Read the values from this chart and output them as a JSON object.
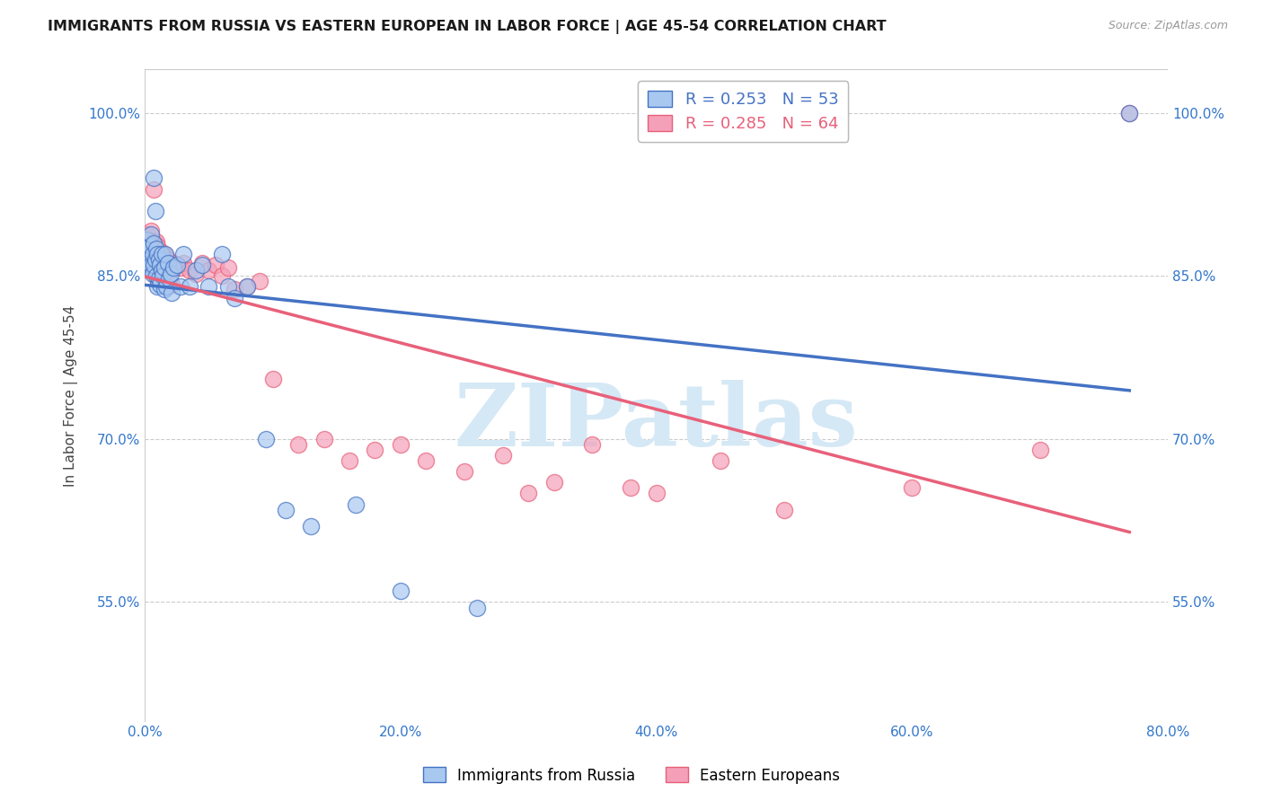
{
  "title": "IMMIGRANTS FROM RUSSIA VS EASTERN EUROPEAN IN LABOR FORCE | AGE 45-54 CORRELATION CHART",
  "source": "Source: ZipAtlas.com",
  "ylabel": "In Labor Force | Age 45-54",
  "xlim": [
    0.0,
    0.8
  ],
  "ylim": [
    0.44,
    1.04
  ],
  "xtick_labels": [
    "0.0%",
    "20.0%",
    "40.0%",
    "60.0%",
    "80.0%"
  ],
  "xtick_vals": [
    0.0,
    0.2,
    0.4,
    0.6,
    0.8
  ],
  "ytick_labels": [
    "55.0%",
    "70.0%",
    "85.0%",
    "100.0%"
  ],
  "ytick_vals": [
    0.55,
    0.7,
    0.85,
    1.0
  ],
  "russia_R": 0.253,
  "russia_N": 53,
  "eastern_R": 0.285,
  "eastern_N": 64,
  "russia_color": "#A8C8F0",
  "eastern_color": "#F4A0B8",
  "russia_line_color": "#4472C4",
  "eastern_line_color": "#E8607A",
  "grid_color": "#CCCCCC",
  "background_color": "#FFFFFF",
  "watermark_text": "ZIPatlas",
  "watermark_color": "#D5E8F5",
  "legend_russia_label": "Immigrants from Russia",
  "legend_eastern_label": "Eastern Europeans",
  "russia_x": [
    0.001,
    0.002,
    0.003,
    0.003,
    0.004,
    0.004,
    0.005,
    0.005,
    0.006,
    0.006,
    0.007,
    0.007,
    0.007,
    0.008,
    0.008,
    0.009,
    0.009,
    0.01,
    0.01,
    0.011,
    0.011,
    0.012,
    0.012,
    0.013,
    0.013,
    0.014,
    0.015,
    0.015,
    0.016,
    0.017,
    0.018,
    0.019,
    0.02,
    0.021,
    0.022,
    0.025,
    0.028,
    0.03,
    0.035,
    0.04,
    0.045,
    0.05,
    0.06,
    0.065,
    0.07,
    0.08,
    0.095,
    0.11,
    0.13,
    0.165,
    0.2,
    0.26,
    0.77
  ],
  "russia_y": [
    0.87,
    0.883,
    0.875,
    0.865,
    0.878,
    0.858,
    0.888,
    0.86,
    0.87,
    0.852,
    0.94,
    0.88,
    0.86,
    0.91,
    0.865,
    0.875,
    0.85,
    0.87,
    0.84,
    0.865,
    0.848,
    0.86,
    0.842,
    0.87,
    0.855,
    0.85,
    0.858,
    0.838,
    0.87,
    0.84,
    0.862,
    0.848,
    0.852,
    0.835,
    0.858,
    0.86,
    0.84,
    0.87,
    0.84,
    0.855,
    0.86,
    0.84,
    0.87,
    0.84,
    0.83,
    0.84,
    0.7,
    0.635,
    0.62,
    0.64,
    0.56,
    0.545,
    1.0
  ],
  "eastern_x": [
    0.001,
    0.002,
    0.002,
    0.003,
    0.004,
    0.004,
    0.005,
    0.005,
    0.006,
    0.006,
    0.007,
    0.007,
    0.008,
    0.008,
    0.009,
    0.009,
    0.01,
    0.01,
    0.011,
    0.011,
    0.012,
    0.013,
    0.013,
    0.014,
    0.015,
    0.016,
    0.017,
    0.018,
    0.019,
    0.02,
    0.021,
    0.022,
    0.025,
    0.028,
    0.03,
    0.035,
    0.04,
    0.045,
    0.05,
    0.055,
    0.06,
    0.065,
    0.07,
    0.08,
    0.09,
    0.1,
    0.12,
    0.14,
    0.16,
    0.18,
    0.2,
    0.22,
    0.25,
    0.28,
    0.3,
    0.32,
    0.35,
    0.38,
    0.4,
    0.45,
    0.5,
    0.6,
    0.7,
    0.77
  ],
  "eastern_y": [
    0.875,
    0.888,
    0.87,
    0.878,
    0.882,
    0.862,
    0.892,
    0.865,
    0.875,
    0.858,
    0.93,
    0.882,
    0.875,
    0.858,
    0.882,
    0.855,
    0.878,
    0.848,
    0.87,
    0.852,
    0.865,
    0.872,
    0.855,
    0.862,
    0.87,
    0.858,
    0.855,
    0.865,
    0.852,
    0.858,
    0.842,
    0.862,
    0.86,
    0.858,
    0.862,
    0.855,
    0.852,
    0.862,
    0.855,
    0.86,
    0.85,
    0.858,
    0.838,
    0.84,
    0.845,
    0.755,
    0.695,
    0.7,
    0.68,
    0.69,
    0.695,
    0.68,
    0.67,
    0.685,
    0.65,
    0.66,
    0.695,
    0.655,
    0.65,
    0.68,
    0.635,
    0.655,
    0.69,
    1.0
  ]
}
